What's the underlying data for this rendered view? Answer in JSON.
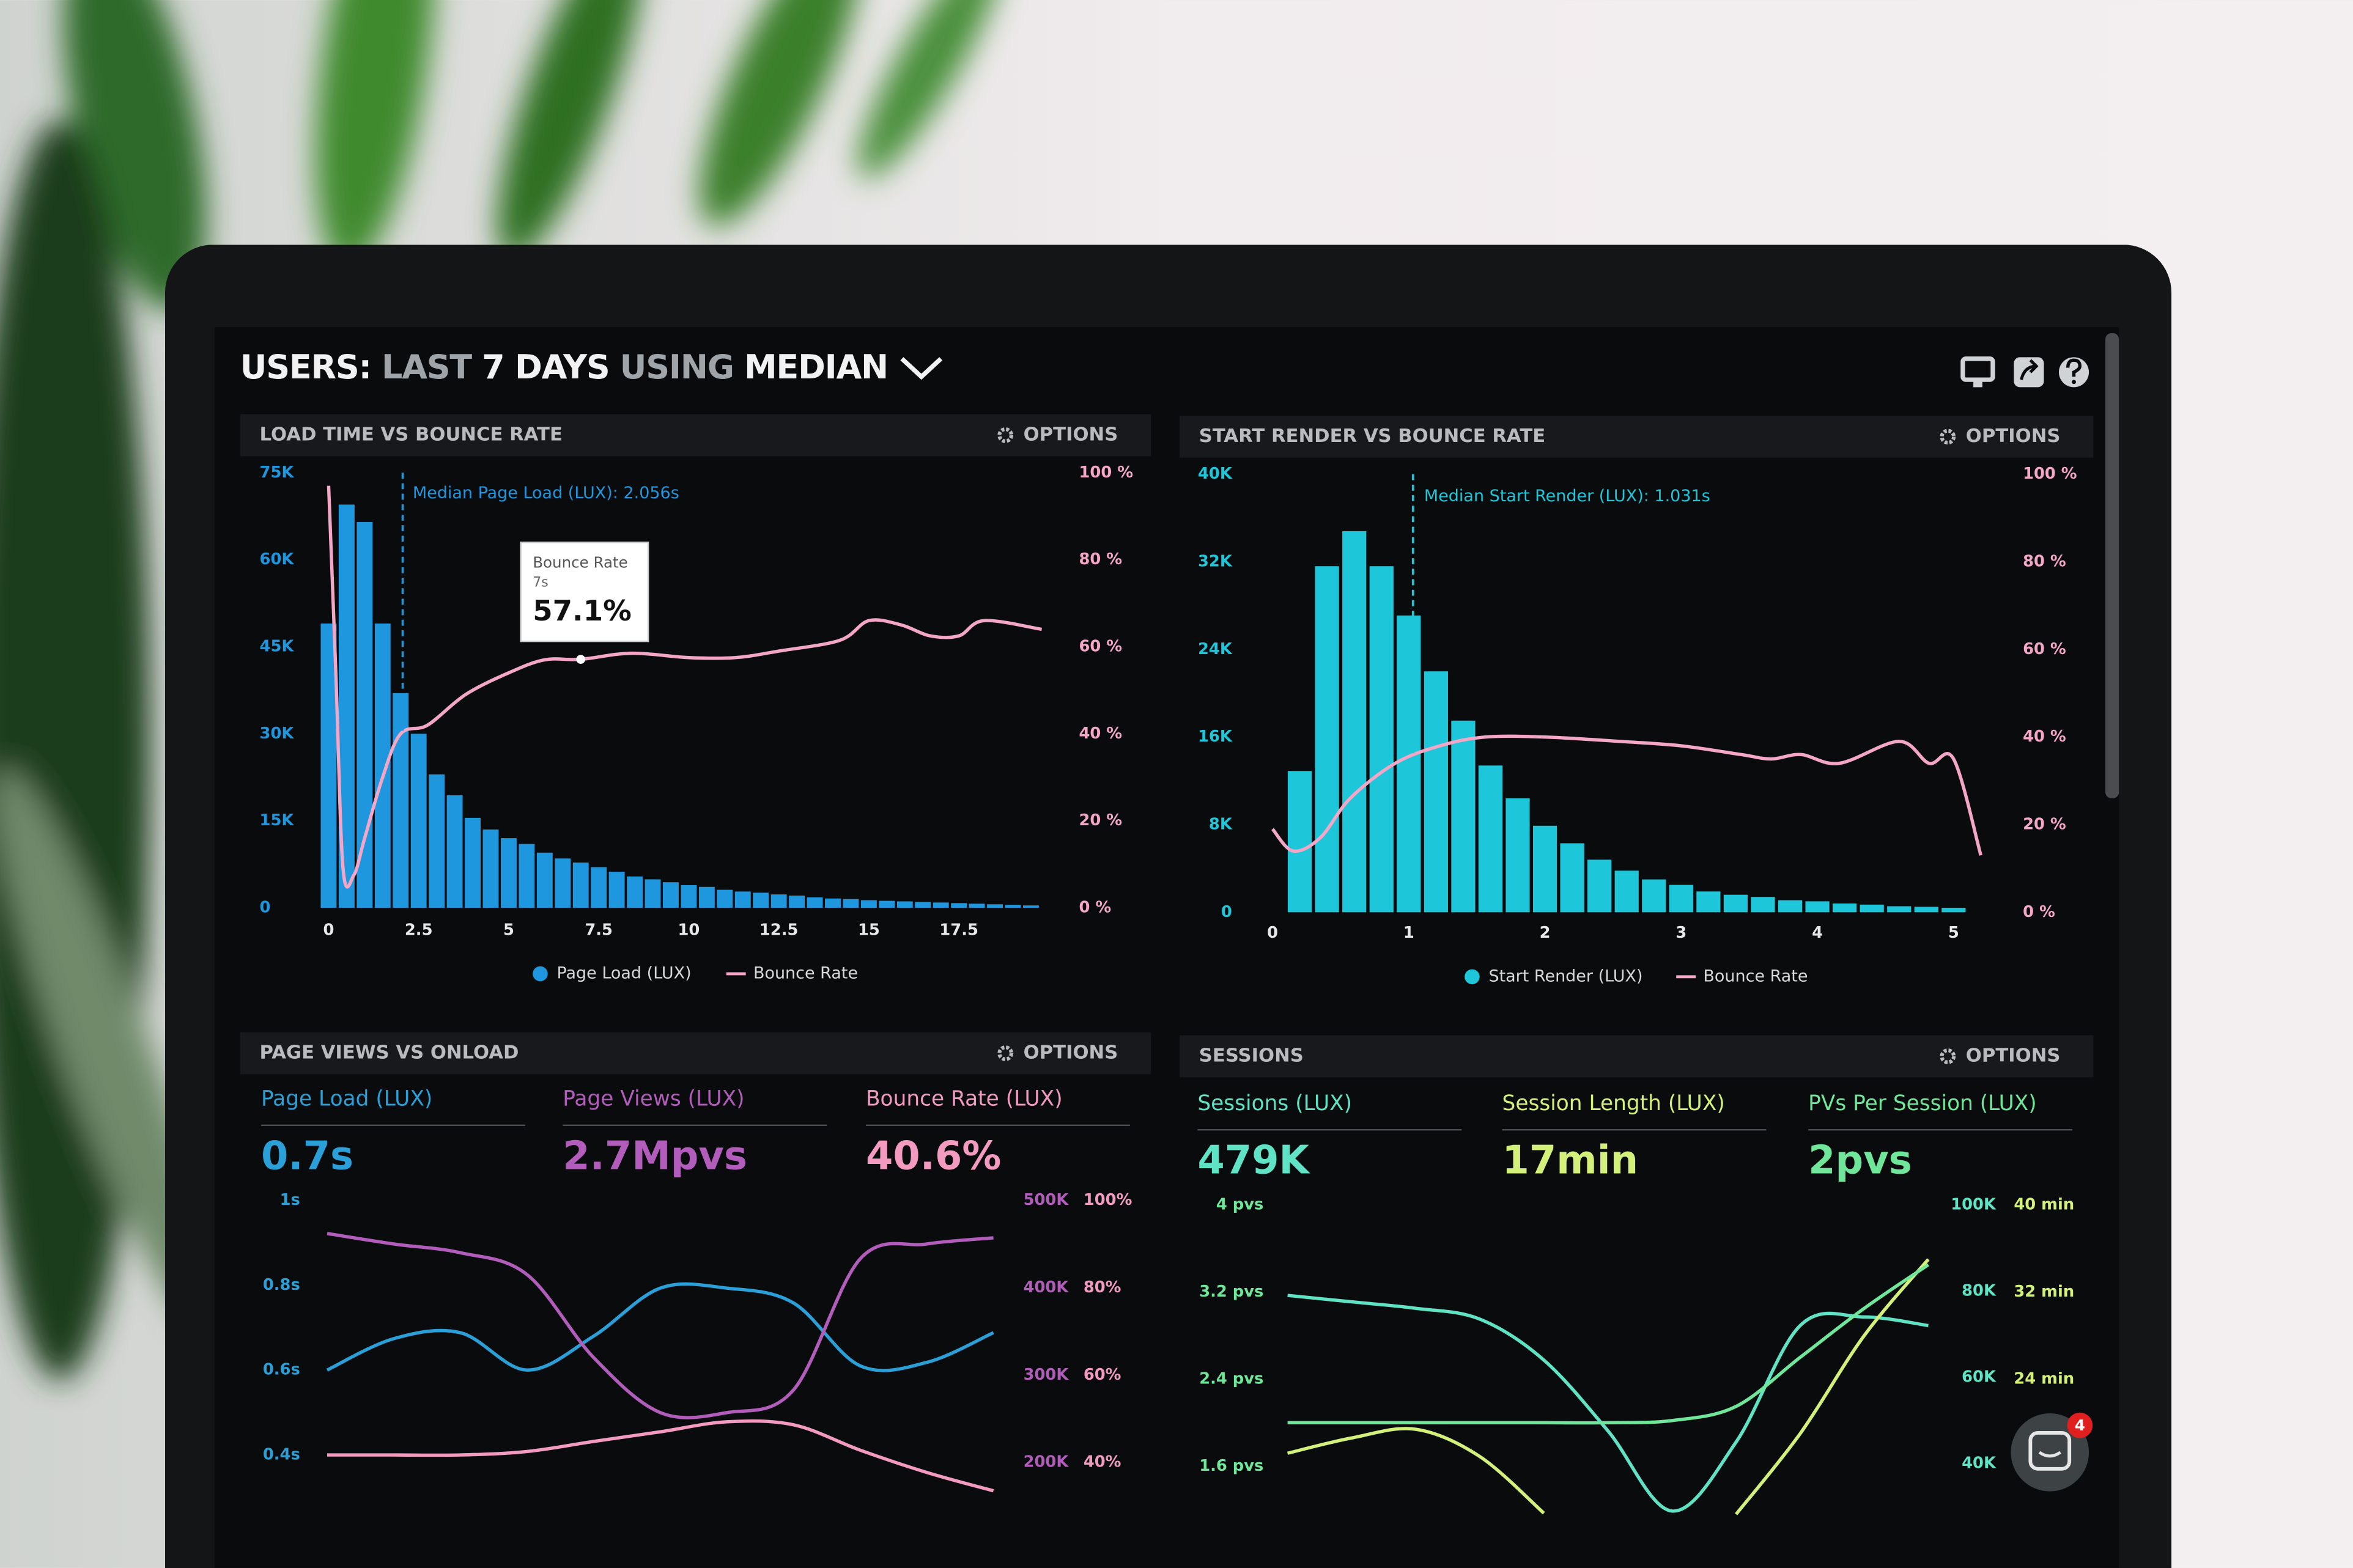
{
  "header": {
    "title": [
      "USERS:",
      "LAST",
      "7 DAYS",
      "USING",
      "MEDIAN"
    ]
  },
  "chat": {
    "badge": "4"
  },
  "chart_data": [
    {
      "type": "histogram",
      "title": "LOAD TIME VS BOUNCE RATE",
      "options": "OPTIONS",
      "bins": [
        -0.25,
        0.25,
        0.75,
        1.25,
        1.75,
        2.25,
        2.75,
        3.25,
        3.75,
        4.25,
        4.75,
        5.25,
        5.75,
        6.25,
        6.75,
        7.25,
        7.75,
        8.25,
        8.75,
        9.25,
        9.75,
        10.25,
        10.75,
        11.25,
        11.75,
        12.25,
        12.75,
        13.25,
        13.75,
        14.25,
        14.75,
        15.25,
        15.75,
        16.25,
        16.75,
        17.25,
        17.75,
        18.25,
        18.75,
        19.25,
        19.75
      ],
      "xlim": [
        -0.25,
        20
      ],
      "xticks": [
        0,
        2.5,
        5,
        7.5,
        10,
        12.5,
        15,
        17.5
      ],
      "ylim": [
        0,
        75000
      ],
      "yticks": [
        0,
        {
          "value": 15000,
          "label": "15K"
        },
        {
          "value": 30000,
          "label": "30K"
        },
        {
          "value": 45000,
          "label": "45K"
        },
        {
          "value": 60000,
          "label": "60K"
        },
        {
          "value": 75000,
          "label": "75K"
        }
      ],
      "y2lim": [
        0,
        100
      ],
      "y2ticks": [
        {
          "value": 0,
          "label": "0 %"
        },
        {
          "value": 20,
          "label": "20 %"
        },
        {
          "value": 40,
          "label": "40 %"
        },
        {
          "value": 60,
          "label": "60 %"
        },
        {
          "value": 80,
          "label": "80 %"
        },
        {
          "value": 100,
          "label": "100 %"
        }
      ],
      "median": {
        "value": 2.056,
        "label": "Median Page Load (LUX): 2.056s"
      },
      "tooltip": {
        "title": "Bounce Rate",
        "x_label": "7s",
        "x": 7,
        "value": 57.1,
        "value_label": "57.1%"
      },
      "series": [
        {
          "name": "Page Load (LUX)",
          "color": "#1f97df",
          "values": [
            49000,
            69500,
            66500,
            49000,
            37000,
            30000,
            23000,
            19400,
            15500,
            13500,
            12000,
            11000,
            9500,
            8500,
            7800,
            7000,
            6200,
            5400,
            4900,
            4400,
            3900,
            3600,
            3100,
            2800,
            2600,
            2300,
            2100,
            1800,
            1600,
            1500,
            1300,
            1200,
            1100,
            1000,
            900,
            800,
            700,
            600,
            500,
            400
          ]
        },
        {
          "name": "Bounce Rate",
          "color": "#f4a6c6",
          "axis": "y2",
          "x": [
            0,
            0.2,
            0.4,
            0.7,
            1,
            1.5,
            2,
            2.75,
            3.8,
            5,
            6,
            7,
            8.4,
            10,
            11.3,
            12.5,
            14.2,
            15,
            15.9,
            16.7,
            17.5,
            18.2,
            19.8
          ],
          "values": [
            97,
            54,
            9,
            7.5,
            16,
            30,
            40,
            42,
            49,
            54,
            57,
            57.1,
            58.5,
            57.5,
            57.5,
            59,
            61.5,
            66,
            65,
            62.5,
            62.5,
            66,
            64
          ]
        }
      ]
    },
    {
      "type": "histogram",
      "title": "START RENDER VS BOUNCE RATE",
      "options": "OPTIONS",
      "bins": [
        0.1,
        0.3,
        0.5,
        0.7,
        0.9,
        1.1,
        1.3,
        1.5,
        1.7,
        1.9,
        2.1,
        2.3,
        2.5,
        2.7,
        2.9,
        3.1,
        3.3,
        3.5,
        3.7,
        3.9,
        4.1,
        4.3,
        4.5,
        4.7,
        4.9,
        5.1
      ],
      "xlim": [
        0,
        5.2
      ],
      "xticks": [
        0,
        1,
        2,
        3,
        4,
        5
      ],
      "ylim": [
        0,
        40000
      ],
      "yticks": [
        0,
        {
          "value": 8000,
          "label": "8K"
        },
        {
          "value": 16000,
          "label": "16K"
        },
        {
          "value": 24000,
          "label": "24K"
        },
        {
          "value": 32000,
          "label": "32K"
        },
        {
          "value": 40000,
          "label": "40K"
        }
      ],
      "y2lim": [
        0,
        100
      ],
      "y2ticks": [
        {
          "value": 0,
          "label": "0 %"
        },
        {
          "value": 20,
          "label": "20 %"
        },
        {
          "value": 40,
          "label": "40 %"
        },
        {
          "value": 60,
          "label": "60 %"
        },
        {
          "value": 80,
          "label": "80 %"
        },
        {
          "value": 100,
          "label": "100 %"
        }
      ],
      "median": {
        "value": 1.031,
        "label": "Median Start Render (LUX): 1.031s"
      },
      "series": [
        {
          "name": "Start Render (LUX)",
          "color": "#1ec6da",
          "values": [
            12900,
            31600,
            34800,
            31600,
            27100,
            22000,
            17500,
            13400,
            10400,
            7900,
            6300,
            4800,
            3800,
            3000,
            2500,
            1900,
            1600,
            1400,
            1100,
            1000,
            800,
            700,
            550,
            500,
            400
          ]
        },
        {
          "name": "Bounce Rate",
          "color": "#f4a6c6",
          "axis": "y2",
          "x": [
            0,
            0.15,
            0.35,
            0.57,
            0.9,
            1.23,
            1.56,
            2,
            2.55,
            3,
            3.44,
            3.66,
            3.88,
            4.16,
            4.6,
            4.82,
            5,
            5.2
          ],
          "values": [
            19,
            14,
            17,
            26,
            34,
            38,
            40,
            40,
            39,
            38,
            36,
            35,
            36,
            34,
            39,
            34,
            35,
            13
          ]
        }
      ]
    },
    {
      "type": "line",
      "title": "PAGE VIEWS VS ONLOAD",
      "options": "OPTIONS",
      "stats": [
        {
          "label": "Page Load (LUX)",
          "value": "0.7s"
        },
        {
          "label": "Page Views (LUX)",
          "value": "2.7Mpvs"
        },
        {
          "label": "Bounce Rate (LUX)",
          "value": "40.6%"
        }
      ],
      "x": [
        0,
        1,
        2,
        3,
        4,
        5,
        6,
        7,
        8,
        9,
        10
      ],
      "xlim": [
        0,
        10
      ],
      "ylim": [
        0.3,
        1
      ],
      "yticks": [
        {
          "value": 0.4,
          "label": "0.4s"
        },
        {
          "value": 0.6,
          "label": "0.6s"
        },
        {
          "value": 0.8,
          "label": "0.8s"
        },
        {
          "value": 1,
          "label": "1s"
        }
      ],
      "y2lim": [
        160000,
        500000
      ],
      "y2ticks": [
        {
          "value": 200000,
          "label": "200K"
        },
        {
          "value": 300000,
          "label": "300K"
        },
        {
          "value": 400000,
          "label": "400K"
        },
        {
          "value": 500000,
          "label": "500K"
        }
      ],
      "y3lim": [
        32,
        100
      ],
      "y3ticks": [
        {
          "value": 40,
          "label": "40%"
        },
        {
          "value": 60,
          "label": "60%"
        },
        {
          "value": 80,
          "label": "80%"
        },
        {
          "value": 100,
          "label": "100%"
        }
      ],
      "series": [
        {
          "color": "#2a9fd8",
          "values": [
            0.6,
            0.674,
            0.688,
            0.6,
            0.68,
            0.793,
            0.793,
            0.758,
            0.61,
            0.618,
            0.688
          ]
        },
        {
          "color": "#b25cbb",
          "axis": "y2",
          "values": [
            462000,
            450000,
            440000,
            415000,
            320000,
            257000,
            257000,
            283000,
            433000,
            450000,
            457000
          ]
        },
        {
          "color": "#f39ac1",
          "axis": "y3",
          "values": [
            41.7,
            41.7,
            41.7,
            42.5,
            44.8,
            47,
            49.3,
            48.6,
            42.8,
            37.7,
            33.5
          ]
        }
      ]
    },
    {
      "type": "line",
      "title": "SESSIONS",
      "options": "OPTIONS",
      "stats": [
        {
          "label": "Sessions (LUX)",
          "value": "479K"
        },
        {
          "label": "Session Length (LUX)",
          "value": "17min"
        },
        {
          "label": "PVs Per Session (LUX)",
          "value": "2pvs"
        }
      ],
      "x": [
        0,
        1,
        2,
        3,
        4,
        5,
        6,
        7,
        8,
        9,
        10
      ],
      "xlim": [
        0,
        10
      ],
      "ylim": [
        1.15,
        4
      ],
      "yticks": [
        {
          "value": 1.6,
          "label": "1.6 pvs"
        },
        {
          "value": 2.4,
          "label": "2.4 pvs"
        },
        {
          "value": 3.2,
          "label": "3.2 pvs"
        },
        {
          "value": 4,
          "label": "4 pvs"
        }
      ],
      "y2lim": [
        28000,
        100000
      ],
      "y2ticks": [
        {
          "value": 40000,
          "label": "40K"
        },
        {
          "value": 60000,
          "label": "60K"
        },
        {
          "value": 80000,
          "label": "80K"
        },
        {
          "value": 100000,
          "label": "100K"
        }
      ],
      "y3lim": [
        11.5,
        40
      ],
      "y3ticks": [
        {
          "value": 24,
          "label": "24 min"
        },
        {
          "value": 32,
          "label": "32 min"
        },
        {
          "value": 40,
          "label": "40 min"
        }
      ],
      "series": [
        {
          "color": "#5fe3c4",
          "axis": "y2",
          "values": [
            79000,
            77500,
            76000,
            73500,
            64000,
            47600,
            29000,
            45000,
            72000,
            74000,
            72000
          ]
        },
        {
          "color": "#d2f07a",
          "axis": "y3",
          "values": [
            17.2,
            18.6,
            19.4,
            16.9,
            11.7,
            null,
            null,
            11.6,
            19,
            28,
            35
          ]
        },
        {
          "color": "#6fe69a",
          "values": [
            2,
            2,
            2,
            2,
            2,
            2,
            2.02,
            2.15,
            2.6,
            3.05,
            3.45
          ]
        }
      ]
    }
  ]
}
